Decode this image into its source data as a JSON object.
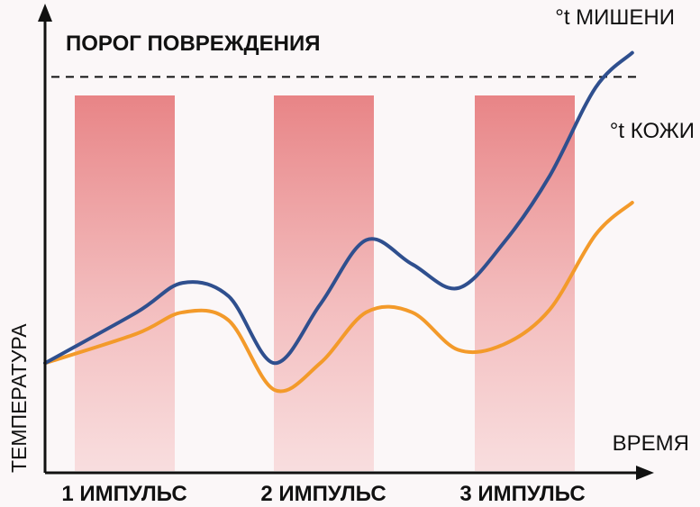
{
  "chart_data": {
    "type": "line",
    "threshold_label": "ПОРОГ ПОВРЕЖДЕНИЯ",
    "xlabel": "ВРЕМЯ",
    "ylabel": "ТЕМПЕРАТУРА",
    "pulses": [
      "1 ИМПУЛЬС",
      "2 ИМПУЛЬС",
      "3 ИМПУЛЬС"
    ],
    "x": [
      0,
      1,
      1.5,
      2,
      2.5,
      3,
      3.5,
      4,
      4.5,
      5,
      5.5,
      6,
      6.4
    ],
    "series": [
      {
        "name": "°t МИШЕНИ",
        "color": "#2f4f8e",
        "values": [
          2.05,
          3.0,
          3.55,
          3.3,
          2.05,
          3.15,
          4.35,
          3.9,
          3.45,
          4.3,
          5.55,
          7.2,
          7.85
        ]
      },
      {
        "name": "°t КОЖИ",
        "color": "#f39a2a",
        "values": [
          2.05,
          2.6,
          3.0,
          2.85,
          1.55,
          2.05,
          3.0,
          3.0,
          2.3,
          2.4,
          3.05,
          4.45,
          5.05
        ]
      }
    ],
    "threshold": 7.4,
    "ylim": [
      0,
      8.5
    ],
    "xlim": [
      0,
      6.5
    ],
    "colors": {
      "pulse_bar": "#e88486",
      "axis": "#111111",
      "threshold_line": "#111111"
    }
  }
}
